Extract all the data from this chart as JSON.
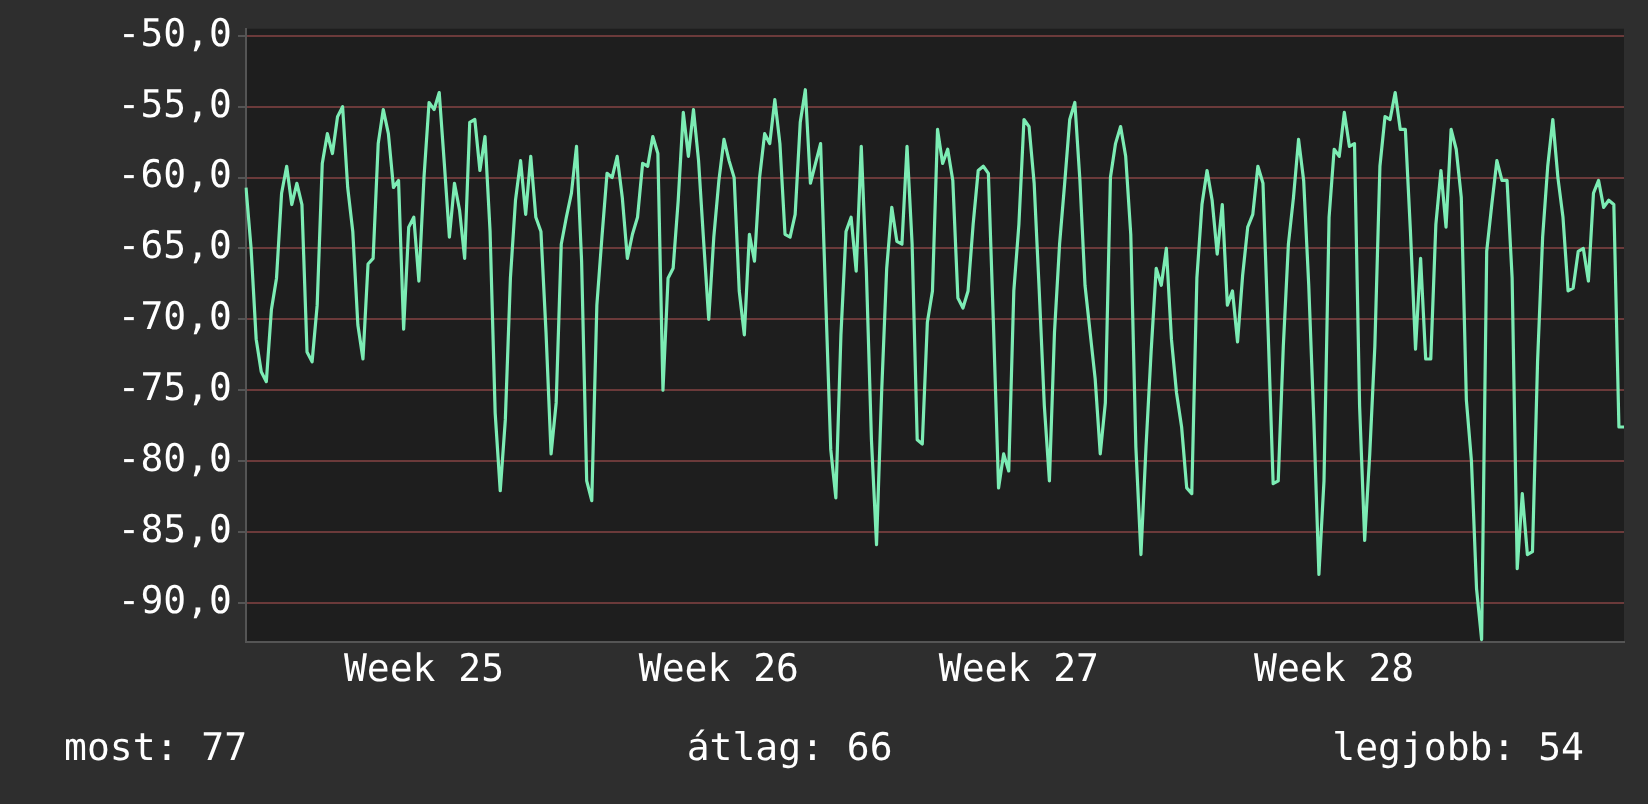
{
  "chart_data": {
    "type": "line",
    "color": "#7cecb4",
    "marker": "none",
    "line_style": "solid",
    "grid": "y",
    "legend": false,
    "ylim": [
      -92.8,
      -49.5
    ],
    "categories": [
      null,
      null,
      null,
      null,
      null,
      null,
      null,
      null,
      null,
      null,
      null,
      null,
      null,
      null,
      null,
      null,
      null,
      null,
      null,
      null,
      null,
      null,
      null,
      null,
      null,
      null,
      null,
      null,
      null,
      null,
      null,
      null,
      null,
      null,
      null,
      "Week 25",
      null,
      null,
      null,
      null,
      null,
      null,
      null,
      null,
      null,
      null,
      null,
      null,
      null,
      null,
      null,
      null,
      null,
      null,
      null,
      null,
      null,
      null,
      null,
      null,
      null,
      null,
      null,
      null,
      null,
      null,
      null,
      null,
      null,
      null,
      null,
      null,
      null,
      null,
      null,
      null,
      null,
      null,
      null,
      null,
      null,
      null,
      null,
      null,
      null,
      null,
      null,
      null,
      null,
      null,
      null,
      null,
      null,
      "Week 26",
      null,
      null,
      null,
      null,
      null,
      null,
      null,
      null,
      null,
      null,
      null,
      null,
      null,
      null,
      null,
      null,
      null,
      null,
      null,
      null,
      null,
      null,
      null,
      null,
      null,
      null,
      null,
      null,
      null,
      null,
      null,
      null,
      null,
      null,
      null,
      null,
      null,
      null,
      null,
      null,
      null,
      null,
      null,
      null,
      null,
      null,
      null,
      null,
      null,
      null,
      null,
      null,
      null,
      null,
      null,
      null,
      null,
      null,
      "Week 27",
      null,
      null,
      null,
      null,
      null,
      null,
      null,
      null,
      null,
      null,
      null,
      null,
      null,
      null,
      null,
      null,
      null,
      null,
      null,
      null,
      null,
      null,
      null,
      null,
      null,
      null,
      null,
      null,
      null,
      null,
      null,
      null,
      null,
      null,
      null,
      null,
      null,
      null,
      null,
      null,
      null,
      null,
      null,
      null,
      null,
      null,
      null,
      null,
      null,
      null,
      null,
      null,
      null,
      null,
      null,
      null,
      null,
      null,
      null,
      null,
      null,
      "Week 28",
      null,
      null,
      null,
      null,
      null,
      null,
      null,
      null,
      null,
      null,
      null,
      null,
      null,
      null,
      null,
      null,
      null,
      null,
      null,
      null,
      null,
      null,
      null,
      null,
      null,
      null,
      null,
      null,
      null,
      null,
      null,
      null,
      null,
      null,
      null,
      null,
      null,
      null,
      null,
      null,
      null,
      null,
      null,
      null,
      null,
      null,
      null,
      null,
      null,
      null,
      null,
      null,
      null,
      null,
      null,
      null,
      null
    ],
    "yticks": [
      {
        "value": -50,
        "label": "-50,0"
      },
      {
        "value": -55,
        "label": "-55,0"
      },
      {
        "value": -60,
        "label": "-60,0"
      },
      {
        "value": -65,
        "label": "-65,0"
      },
      {
        "value": -70,
        "label": "-70,0"
      },
      {
        "value": -75,
        "label": "-75,0"
      },
      {
        "value": -80,
        "label": "-80,0"
      },
      {
        "value": -85,
        "label": "-85,0"
      },
      {
        "value": -90,
        "label": "-90,0"
      }
    ],
    "values": [
      -60.7,
      -65.0,
      -71.4,
      -73.7,
      -74.4,
      -69.3,
      -67.1,
      -61.1,
      -59.2,
      -61.9,
      -60.4,
      -61.9,
      -72.3,
      -73.0,
      -69.0,
      -59.0,
      -56.9,
      -58.3,
      -55.7,
      -55.0,
      -60.7,
      -63.8,
      -70.4,
      -72.8,
      -66.1,
      -65.7,
      -57.6,
      -55.2,
      -56.9,
      -60.7,
      -60.2,
      -70.7,
      -63.5,
      -62.8,
      -67.3,
      -60.0,
      -54.7,
      -55.2,
      -54.0,
      -59.0,
      -64.2,
      -60.4,
      -62.3,
      -65.7,
      -56.1,
      -55.9,
      -59.5,
      -57.1,
      -63.8,
      -76.6,
      -82.1,
      -77.1,
      -67.1,
      -61.6,
      -58.8,
      -62.6,
      -58.5,
      -62.8,
      -63.8,
      -70.9,
      -79.5,
      -75.9,
      -64.7,
      -62.8,
      -61.1,
      -57.8,
      -65.9,
      -81.4,
      -82.8,
      -69.0,
      -64.2,
      -59.7,
      -60.0,
      -58.5,
      -61.4,
      -65.7,
      -64.0,
      -62.8,
      -59.0,
      -59.2,
      -57.1,
      -58.3,
      -75.0,
      -67.1,
      -66.4,
      -61.6,
      -55.4,
      -58.5,
      -55.2,
      -58.8,
      -64.5,
      -70.0,
      -64.2,
      -60.2,
      -57.3,
      -58.8,
      -60.0,
      -68.0,
      -71.1,
      -64.0,
      -65.9,
      -60.0,
      -56.9,
      -57.6,
      -54.5,
      -57.6,
      -64.0,
      -64.2,
      -62.6,
      -56.1,
      -53.8,
      -60.4,
      -59.0,
      -57.6,
      -68.5,
      -79.2,
      -82.6,
      -71.1,
      -63.8,
      -62.8,
      -66.6,
      -57.8,
      -66.6,
      -78.5,
      -85.9,
      -75.2,
      -66.4,
      -62.1,
      -64.5,
      -64.7,
      -57.8,
      -64.7,
      -78.5,
      -78.8,
      -70.2,
      -68.0,
      -56.6,
      -59.0,
      -58.0,
      -60.2,
      -68.5,
      -69.2,
      -68.0,
      -63.3,
      -59.5,
      -59.2,
      -59.7,
      -70.4,
      -81.9,
      -79.5,
      -80.7,
      -68.0,
      -63.3,
      -55.9,
      -56.4,
      -60.4,
      -68.0,
      -76.1,
      -81.4,
      -70.9,
      -64.7,
      -60.4,
      -55.9,
      -54.7,
      -60.2,
      -67.6,
      -70.9,
      -74.2,
      -79.5,
      -75.9,
      -60.0,
      -57.6,
      -56.4,
      -58.5,
      -64.0,
      -79.0,
      -86.6,
      -79.0,
      -72.3,
      -66.4,
      -67.6,
      -65.0,
      -71.4,
      -75.2,
      -77.6,
      -81.9,
      -82.3,
      -67.1,
      -61.9,
      -59.5,
      -61.6,
      -65.4,
      -61.9,
      -69.0,
      -68.0,
      -71.6,
      -66.9,
      -63.5,
      -62.6,
      -59.2,
      -60.4,
      -70.7,
      -81.6,
      -81.4,
      -71.9,
      -64.7,
      -61.4,
      -57.3,
      -60.2,
      -67.6,
      -77.1,
      -88.0,
      -81.4,
      -62.8,
      -58.0,
      -58.5,
      -55.4,
      -57.8,
      -57.6,
      -76.1,
      -85.6,
      -79.5,
      -71.9,
      -59.2,
      -55.7,
      -55.9,
      -54.0,
      -56.6,
      -56.6,
      -63.8,
      -72.1,
      -65.7,
      -72.8,
      -72.8,
      -63.3,
      -59.5,
      -63.5,
      -56.6,
      -58.0,
      -61.4,
      -75.7,
      -80.0,
      -89.0,
      -92.6,
      -65.2,
      -61.9,
      -58.8,
      -60.2,
      -60.2,
      -67.1,
      -87.6,
      -82.3,
      -86.6,
      -86.4,
      -73.0,
      -64.2,
      -59.2,
      -55.9,
      -60.0,
      -62.8,
      -68.0,
      -67.8,
      -65.2,
      -65.0,
      -67.3,
      -61.1,
      -60.2,
      -62.1,
      -61.6,
      -61.9,
      -77.6,
      -77.6
    ],
    "annotations": [
      "most: 77",
      "átlag: 66",
      "legjobb: 54"
    ]
  }
}
